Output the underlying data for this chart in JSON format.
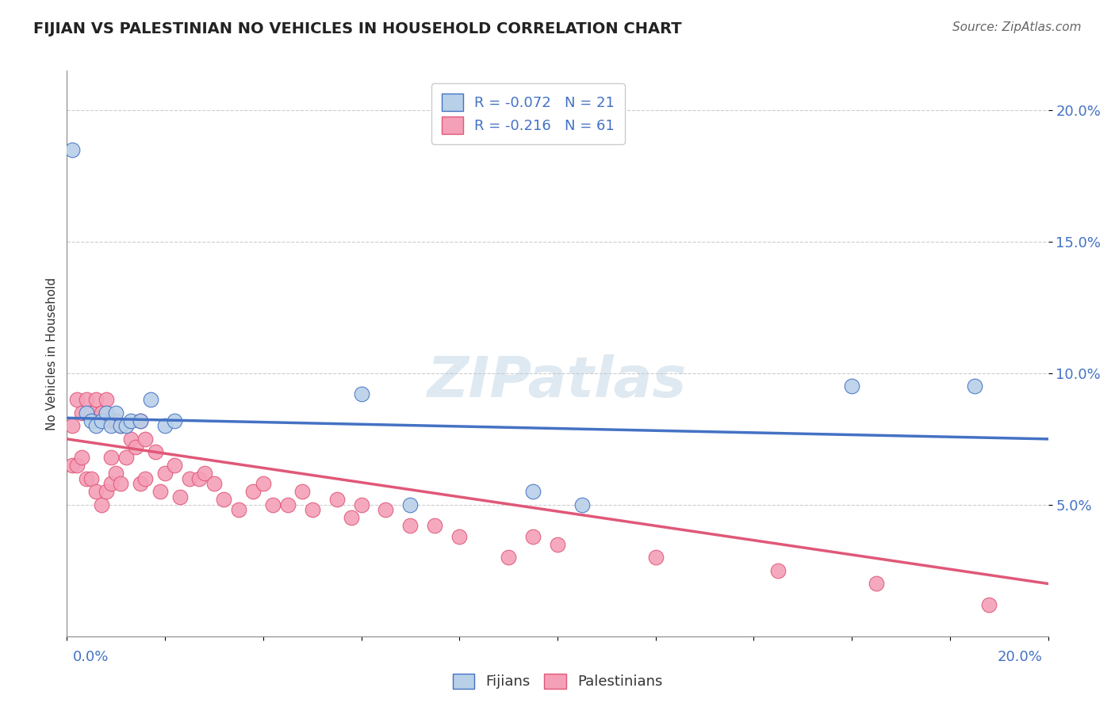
{
  "title": "FIJIAN VS PALESTINIAN NO VEHICLES IN HOUSEHOLD CORRELATION CHART",
  "source": "Source: ZipAtlas.com",
  "ylabel": "No Vehicles in Household",
  "xlim": [
    0.0,
    0.2
  ],
  "ylim": [
    0.0,
    0.215
  ],
  "yticks": [
    0.05,
    0.1,
    0.15,
    0.2
  ],
  "ytick_labels": [
    "5.0%",
    "10.0%",
    "15.0%",
    "20.0%"
  ],
  "legend_fijian": "R = -0.072   N = 21",
  "legend_palestinian": "R = -0.216   N = 61",
  "fijian_color": "#b8d0e8",
  "fijian_line_color": "#4472c4",
  "palestinian_color": "#f4a0b8",
  "palestinian_line_color": "#e05878",
  "watermark": "ZIPatlas",
  "fijian_x": [
    0.001,
    0.004,
    0.005,
    0.006,
    0.007,
    0.008,
    0.009,
    0.01,
    0.011,
    0.012,
    0.013,
    0.015,
    0.017,
    0.02,
    0.022,
    0.06,
    0.07,
    0.095,
    0.105,
    0.16,
    0.185
  ],
  "fijian_y": [
    0.185,
    0.085,
    0.082,
    0.08,
    0.082,
    0.085,
    0.08,
    0.085,
    0.08,
    0.08,
    0.082,
    0.082,
    0.09,
    0.08,
    0.082,
    0.092,
    0.05,
    0.055,
    0.05,
    0.095,
    0.095
  ],
  "fijian_trendline_x": [
    0.0,
    0.2
  ],
  "fijian_trendline_y": [
    0.083,
    0.075
  ],
  "palestinian_trendline_x": [
    0.0,
    0.2
  ],
  "palestinian_trendline_y": [
    0.075,
    0.02
  ],
  "palestinian_x": [
    0.001,
    0.001,
    0.002,
    0.002,
    0.003,
    0.003,
    0.004,
    0.004,
    0.005,
    0.005,
    0.006,
    0.006,
    0.007,
    0.007,
    0.008,
    0.008,
    0.009,
    0.009,
    0.009,
    0.01,
    0.01,
    0.011,
    0.011,
    0.012,
    0.013,
    0.014,
    0.015,
    0.015,
    0.016,
    0.016,
    0.018,
    0.019,
    0.02,
    0.022,
    0.023,
    0.025,
    0.027,
    0.028,
    0.03,
    0.032,
    0.035,
    0.038,
    0.04,
    0.042,
    0.045,
    0.048,
    0.05,
    0.055,
    0.058,
    0.06,
    0.065,
    0.07,
    0.075,
    0.08,
    0.09,
    0.095,
    0.1,
    0.12,
    0.145,
    0.165,
    0.188
  ],
  "palestinian_y": [
    0.08,
    0.065,
    0.09,
    0.065,
    0.085,
    0.068,
    0.09,
    0.06,
    0.085,
    0.06,
    0.09,
    0.055,
    0.085,
    0.05,
    0.09,
    0.055,
    0.082,
    0.058,
    0.068,
    0.082,
    0.062,
    0.08,
    0.058,
    0.068,
    0.075,
    0.072,
    0.082,
    0.058,
    0.075,
    0.06,
    0.07,
    0.055,
    0.062,
    0.065,
    0.053,
    0.06,
    0.06,
    0.062,
    0.058,
    0.052,
    0.048,
    0.055,
    0.058,
    0.05,
    0.05,
    0.055,
    0.048,
    0.052,
    0.045,
    0.05,
    0.048,
    0.042,
    0.042,
    0.038,
    0.03,
    0.038,
    0.035,
    0.03,
    0.025,
    0.02,
    0.012
  ],
  "title_color": "#222222",
  "tick_color": "#4472c4",
  "grid_color": "#cccccc",
  "background_color": "#ffffff"
}
